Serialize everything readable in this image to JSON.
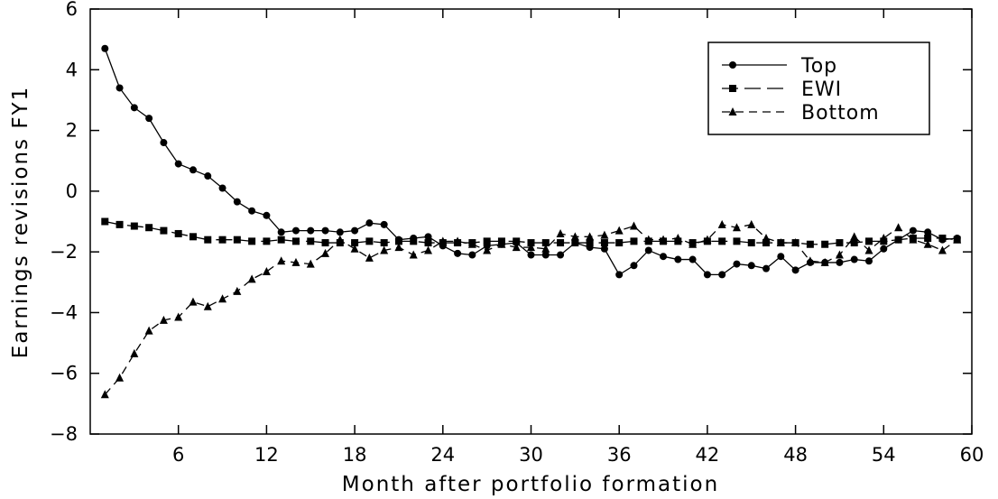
{
  "chart_data": {
    "type": "line",
    "xlabel": "Month after portfolio formation",
    "ylabel": "Earnings revisions FY1",
    "xlim": [
      0,
      60
    ],
    "ylim": [
      -8,
      6
    ],
    "xticks": [
      6,
      12,
      18,
      24,
      30,
      36,
      42,
      48,
      54,
      60
    ],
    "yticks": [
      -8,
      -6,
      -4,
      -2,
      0,
      2,
      4,
      6
    ],
    "grid": false,
    "legend_position": "top-right",
    "x": [
      1,
      2,
      3,
      4,
      5,
      6,
      7,
      8,
      9,
      10,
      11,
      12,
      13,
      14,
      15,
      16,
      17,
      18,
      19,
      20,
      21,
      22,
      23,
      24,
      25,
      26,
      27,
      28,
      29,
      30,
      31,
      32,
      33,
      34,
      35,
      36,
      37,
      38,
      39,
      40,
      41,
      42,
      43,
      44,
      45,
      46,
      47,
      48,
      49,
      50,
      51,
      52,
      53,
      54,
      55,
      56,
      57,
      58,
      59
    ],
    "series": [
      {
        "name": "Top",
        "marker": "circle",
        "dash": "solid",
        "values": [
          4.7,
          3.4,
          2.75,
          2.4,
          1.6,
          0.9,
          0.7,
          0.5,
          0.1,
          -0.35,
          -0.65,
          -0.8,
          -1.35,
          -1.3,
          -1.3,
          -1.3,
          -1.35,
          -1.3,
          -1.05,
          -1.1,
          -1.6,
          -1.55,
          -1.5,
          -1.8,
          -2.05,
          -2.1,
          -1.8,
          -1.75,
          -1.7,
          -2.1,
          -2.1,
          -2.1,
          -1.7,
          -1.85,
          -1.9,
          -2.75,
          -2.45,
          -1.95,
          -2.15,
          -2.25,
          -2.25,
          -2.75,
          -2.75,
          -2.4,
          -2.45,
          -2.55,
          -2.15,
          -2.6,
          -2.35,
          -2.35,
          -2.35,
          -2.25,
          -2.3,
          -1.9,
          -1.6,
          -1.3,
          -1.35,
          -1.6,
          -1.55
        ]
      },
      {
        "name": "EWI",
        "marker": "square",
        "dash": "long-dash",
        "values": [
          -1.0,
          -1.1,
          -1.15,
          -1.2,
          -1.3,
          -1.4,
          -1.5,
          -1.6,
          -1.6,
          -1.6,
          -1.65,
          -1.65,
          -1.6,
          -1.65,
          -1.65,
          -1.7,
          -1.7,
          -1.7,
          -1.65,
          -1.7,
          -1.65,
          -1.65,
          -1.7,
          -1.7,
          -1.7,
          -1.7,
          -1.65,
          -1.65,
          -1.65,
          -1.7,
          -1.7,
          -1.7,
          -1.7,
          -1.7,
          -1.7,
          -1.7,
          -1.65,
          -1.65,
          -1.65,
          -1.65,
          -1.7,
          -1.65,
          -1.65,
          -1.65,
          -1.7,
          -1.7,
          -1.7,
          -1.7,
          -1.75,
          -1.75,
          -1.7,
          -1.7,
          -1.65,
          -1.65,
          -1.6,
          -1.55,
          -1.55,
          -1.55,
          -1.6
        ]
      },
      {
        "name": "Bottom",
        "marker": "triangle",
        "dash": "short-dash",
        "values": [
          -6.7,
          -6.15,
          -5.35,
          -4.6,
          -4.25,
          -4.15,
          -3.65,
          -3.8,
          -3.55,
          -3.3,
          -2.9,
          -2.65,
          -2.3,
          -2.35,
          -2.4,
          -2.05,
          -1.6,
          -1.9,
          -2.2,
          -1.95,
          -1.85,
          -2.1,
          -1.95,
          -1.65,
          -1.65,
          -1.75,
          -1.95,
          -1.75,
          -1.85,
          -1.85,
          -1.9,
          -1.4,
          -1.5,
          -1.5,
          -1.45,
          -1.3,
          -1.15,
          -1.6,
          -1.6,
          -1.55,
          -1.75,
          -1.6,
          -1.1,
          -1.2,
          -1.1,
          -1.55,
          -1.7,
          -1.7,
          -2.3,
          -2.35,
          -2.1,
          -1.5,
          -1.95,
          -1.55,
          -1.2,
          -1.6,
          -1.75,
          -1.95,
          -1.6
        ]
      }
    ]
  }
}
